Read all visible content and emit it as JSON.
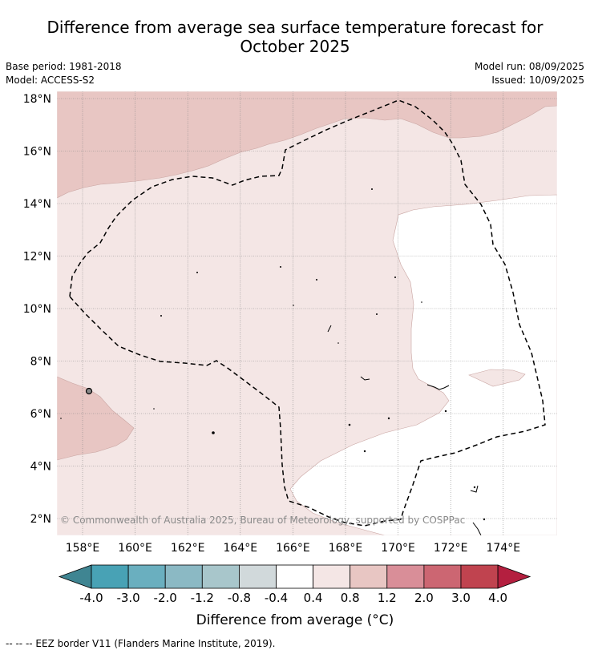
{
  "title_line1": "Difference from average sea surface temperature forecast for",
  "title_line2": "October 2025",
  "meta": {
    "base_period": "Base period: 1981-2018",
    "model": "Model: ACCESS-S2",
    "model_run": "Model run: 08/09/2025",
    "issued": "Issued: 10/09/2025"
  },
  "lat_ticks": [
    "18°N",
    "16°N",
    "14°N",
    "12°N",
    "10°N",
    "8°N",
    "6°N",
    "4°N",
    "2°N"
  ],
  "lon_ticks": [
    "158°E",
    "160°E",
    "162°E",
    "164°E",
    "166°E",
    "168°E",
    "170°E",
    "172°E",
    "174°E"
  ],
  "copyright": "© Commonwealth of Australia 2025, Bureau of Meteorology, supported by COSPPac",
  "colorbar": {
    "tick_labels": [
      "-4.0",
      "-3.0",
      "-2.0",
      "-1.2",
      "-0.8",
      "-0.4",
      "0.4",
      "0.8",
      "1.2",
      "2.0",
      "3.0",
      "4.0"
    ],
    "colors": [
      "#3f8592",
      "#48a2b5",
      "#6aafbf",
      "#8bb9c4",
      "#a8c6cb",
      "#d1d9db",
      "#ffffff",
      "#f4e6e5",
      "#e8c6c3",
      "#d98e98",
      "#cc6672",
      "#c0434f",
      "#b41f3f"
    ],
    "label": "Difference from average (°C)"
  },
  "footnote": "--  --  -- EEZ border V11 (Flanders Marine Institute, 2019)."
}
